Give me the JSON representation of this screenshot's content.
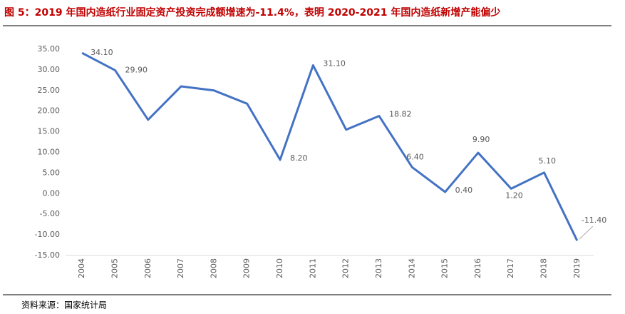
{
  "chart_data": {
    "type": "line",
    "title": "图 5：2019 年国内造纸行业固定资产投资完成额增速为-11.4%，表明 2020-2021 年国内造纸新增产能偏少",
    "source": "资料来源：国家统计局",
    "categories": [
      "2004",
      "2005",
      "2006",
      "2007",
      "2008",
      "2009",
      "2010",
      "2011",
      "2012",
      "2013",
      "2014",
      "2015",
      "2016",
      "2017",
      "2018",
      "2019"
    ],
    "series": [
      {
        "name": "增速",
        "color": "#4472c4",
        "values": [
          34.1,
          29.9,
          17.9,
          26.0,
          25.0,
          21.8,
          8.2,
          31.1,
          15.5,
          18.82,
          6.4,
          0.4,
          9.9,
          1.2,
          5.1,
          -11.4
        ],
        "value_labels": [
          "34.10",
          "29.90",
          null,
          null,
          null,
          null,
          "8.20",
          "31.10",
          null,
          "18.82",
          "6.40",
          "0.40",
          "9.90",
          "1.20",
          "5.10",
          "-11.40"
        ]
      }
    ],
    "ylim": [
      -15,
      35
    ],
    "yticks": [
      {
        "value": -15,
        "label": "-15.00"
      },
      {
        "value": -10,
        "label": "-10.00"
      },
      {
        "value": -5,
        "label": "-5.00"
      },
      {
        "value": 0,
        "label": "0.00"
      },
      {
        "value": 5,
        "label": "5.00"
      },
      {
        "value": 10,
        "label": "10.00"
      },
      {
        "value": 15,
        "label": "15.00"
      },
      {
        "value": 20,
        "label": "20.00"
      },
      {
        "value": 25,
        "label": "25.00"
      },
      {
        "value": 30,
        "label": "30.00"
      },
      {
        "value": 35,
        "label": "35.00"
      }
    ],
    "grid": false
  }
}
